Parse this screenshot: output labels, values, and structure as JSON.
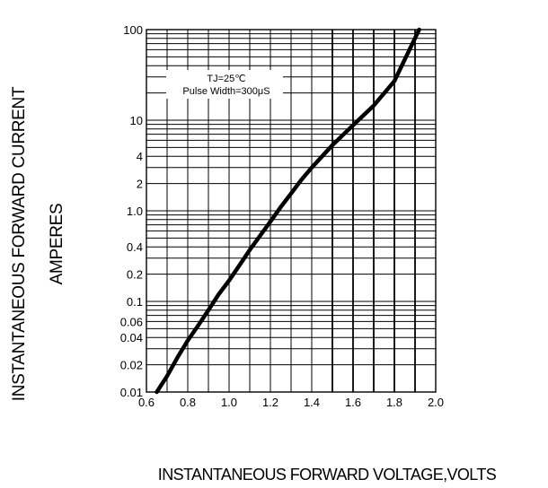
{
  "chart_data": {
    "type": "line",
    "title": "",
    "xlabel": "INSTANTANEOUS FORWARD VOLTAGE,VOLTS",
    "ylabel": [
      "INSTANTANEOUS FORWARD CURRENT",
      "AMPERES"
    ],
    "xlim": [
      0.6,
      2.0
    ],
    "ylim": [
      0.01,
      100
    ],
    "y_scale": "log",
    "grid": true,
    "legend": "none",
    "x_ticks": [
      "0.6",
      "0.8",
      "1.0",
      "1.2",
      "1.4",
      "1.6",
      "1.8",
      "2.0"
    ],
    "y_ticks": [
      {
        "value": 100,
        "label": "100"
      },
      {
        "value": 10,
        "label": "10"
      },
      {
        "value": 4,
        "label": "4"
      },
      {
        "value": 2,
        "label": "2"
      },
      {
        "value": 1,
        "label": "1.0"
      },
      {
        "value": 0.4,
        "label": "0.4"
      },
      {
        "value": 0.2,
        "label": "0.2"
      },
      {
        "value": 0.1,
        "label": "0.1"
      },
      {
        "value": 0.06,
        "label": "0.06"
      },
      {
        "value": 0.04,
        "label": "0.04"
      },
      {
        "value": 0.02,
        "label": "0.02"
      },
      {
        "value": 0.01,
        "label": "0.01"
      }
    ],
    "annotations": [
      "TJ=25℃",
      "Pulse Width=300μS"
    ],
    "series": [
      {
        "x": [
          0.65,
          0.7,
          0.75,
          0.8,
          0.85,
          0.9,
          0.95,
          1.0,
          1.05,
          1.1,
          1.15,
          1.2,
          1.25,
          1.3,
          1.35,
          1.4,
          1.5,
          1.6,
          1.7,
          1.8,
          1.92
        ],
        "y": [
          0.01,
          0.015,
          0.024,
          0.037,
          0.054,
          0.08,
          0.12,
          0.17,
          0.25,
          0.37,
          0.53,
          0.76,
          1.1,
          1.55,
          2.2,
          3.0,
          5.3,
          8.8,
          14.5,
          27,
          100
        ]
      }
    ],
    "colors": {
      "curve": "#000000",
      "grid": "#000000"
    }
  }
}
